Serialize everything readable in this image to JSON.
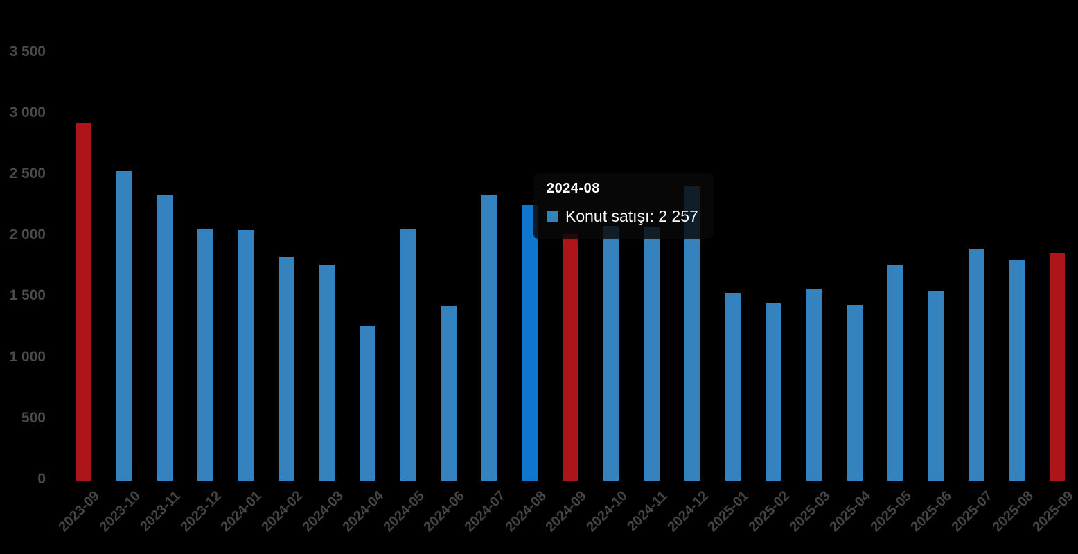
{
  "chart_data": {
    "type": "bar",
    "title": "",
    "xlabel": "",
    "ylabel": "",
    "ylim": [
      0,
      3500
    ],
    "grid": false,
    "legend": "none",
    "background_color": "#000000",
    "axis_label_color": "#4a4a4a",
    "categories": [
      "2023-09",
      "2023-10",
      "2023-11",
      "2023-12",
      "2024-01",
      "2024-02",
      "2024-03",
      "2024-04",
      "2024-05",
      "2024-06",
      "2024-07",
      "2024-08",
      "2024-09",
      "2024-10",
      "2024-11",
      "2024-12",
      "2025-01",
      "2025-02",
      "2025-03",
      "2025-04",
      "2025-05",
      "2025-06",
      "2025-07",
      "2025-08",
      "2025-09"
    ],
    "series": [
      {
        "name": "Konut satışı",
        "values": [
          2925,
          2535,
          2335,
          2060,
          2055,
          1835,
          1770,
          1265,
          2060,
          1430,
          2345,
          2257,
          2020,
          2080,
          2075,
          2410,
          1540,
          1450,
          1570,
          1435,
          1765,
          1555,
          1900,
          1805,
          1860
        ]
      }
    ],
    "y_axis": {
      "ticks": [
        {
          "value": 0,
          "label": "0"
        },
        {
          "value": 500,
          "label": "500"
        },
        {
          "value": 1000,
          "label": "1 000"
        },
        {
          "value": 1500,
          "label": "1 500"
        },
        {
          "value": 2000,
          "label": "2 000"
        },
        {
          "value": 2500,
          "label": "2 500"
        },
        {
          "value": 3000,
          "label": "3 000"
        },
        {
          "value": 3500,
          "label": "3 500"
        }
      ]
    },
    "colors": {
      "bar_default": "#3482be",
      "bar_hovered": "#0e76cf",
      "bar_highlight_red": "#ad151b"
    },
    "red_categories": [
      "2023-09",
      "2024-09",
      "2025-09"
    ],
    "hovered_category": "2024-08"
  },
  "tooltip": {
    "title": "2024-08",
    "series_name": "Konut satışı",
    "value": "2 257",
    "text": "Konut satışı: 2 257",
    "symbol_color": "#3482be"
  }
}
